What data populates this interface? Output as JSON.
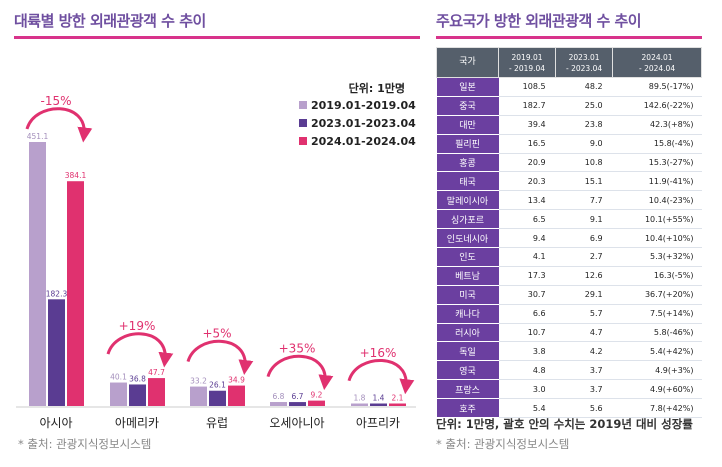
{
  "left_title": "대륙별 방한 외래관광객 수 추이",
  "right_title": "주요국가 방한 외래관광객 수 추이",
  "left_source": "* 출처: 관광지식정보시스템",
  "right_source": "* 출처: 관광지식정보시스템",
  "table_note": "단위: 1만명, 괄호 안의 수치는 2019년 대비 성장률",
  "colors": {
    "accent": "#6f4fa0",
    "pink": "#e0316f",
    "light_purple": "#b8a0cc",
    "dark_purple": "#5a3c92",
    "country_cell": "#6b3fa0",
    "header_bg": "#555f6b"
  },
  "chart_data": {
    "type": "bar",
    "title": "대륙별 방한 외래관광객 수 추이",
    "unit_label": "단위: 1만명",
    "categories": [
      "아시아",
      "아메리카",
      "유럽",
      "오세아니아",
      "아프리카"
    ],
    "series": [
      {
        "name": "2019.01-2019.04",
        "values": [
          451.1,
          40.1,
          33.2,
          6.8,
          1.8
        ],
        "labels": [
          "451.1",
          "40.1",
          "33.2",
          "6.8",
          "1.8"
        ]
      },
      {
        "name": "2023.01-2023.04",
        "values": [
          182.3,
          36.8,
          26.1,
          6.7,
          1.4
        ],
        "labels": [
          "182.3",
          "36.8",
          "26.1",
          "6.7",
          "1.4"
        ]
      },
      {
        "name": "2024.01-2024.04",
        "values": [
          384.1,
          47.7,
          34.9,
          9.2,
          2.1
        ],
        "labels": [
          "384.1",
          "47.7",
          "34.9",
          "9.2",
          "2.1"
        ]
      }
    ],
    "growth_labels": [
      "-15%",
      "+19%",
      "+5%",
      "+35%",
      "+16%"
    ],
    "legend_position": "top-right"
  },
  "table": {
    "headers": [
      "국가",
      "2019.01 - 2019.04",
      "2023.01 - 2023.04",
      "2024.01 - 2024.04"
    ],
    "rows": [
      [
        "일본",
        "108.5",
        "48.2",
        "89.5(-17%)"
      ],
      [
        "중국",
        "182.7",
        "25.0",
        "142.6(-22%)"
      ],
      [
        "대만",
        "39.4",
        "23.8",
        "42.3(+8%)"
      ],
      [
        "필리핀",
        "16.5",
        "9.0",
        "15.8(-4%)"
      ],
      [
        "홍콩",
        "20.9",
        "10.8",
        "15.3(-27%)"
      ],
      [
        "태국",
        "20.3",
        "15.1",
        "11.9(-41%)"
      ],
      [
        "말레이시아",
        "13.4",
        "7.7",
        "10.4(-23%)"
      ],
      [
        "싱가포르",
        "6.5",
        "9.1",
        "10.1(+55%)"
      ],
      [
        "인도네시아",
        "9.4",
        "6.9",
        "10.4(+10%)"
      ],
      [
        "인도",
        "4.1",
        "2.7",
        "5.3(+32%)"
      ],
      [
        "베트남",
        "17.3",
        "12.6",
        "16.3(-5%)"
      ],
      [
        "미국",
        "30.7",
        "29.1",
        "36.7(+20%)"
      ],
      [
        "캐나다",
        "6.6",
        "5.7",
        "7.5(+14%)"
      ],
      [
        "러시아",
        "10.7",
        "4.7",
        "5.8(-46%)"
      ],
      [
        "독일",
        "3.8",
        "4.2",
        "5.4(+42%)"
      ],
      [
        "영국",
        "4.8",
        "3.7",
        "4.9(+3%)"
      ],
      [
        "프랑스",
        "3.0",
        "3.7",
        "4.9(+60%)"
      ],
      [
        "호주",
        "5.4",
        "5.6",
        "7.8(+42%)"
      ]
    ]
  }
}
